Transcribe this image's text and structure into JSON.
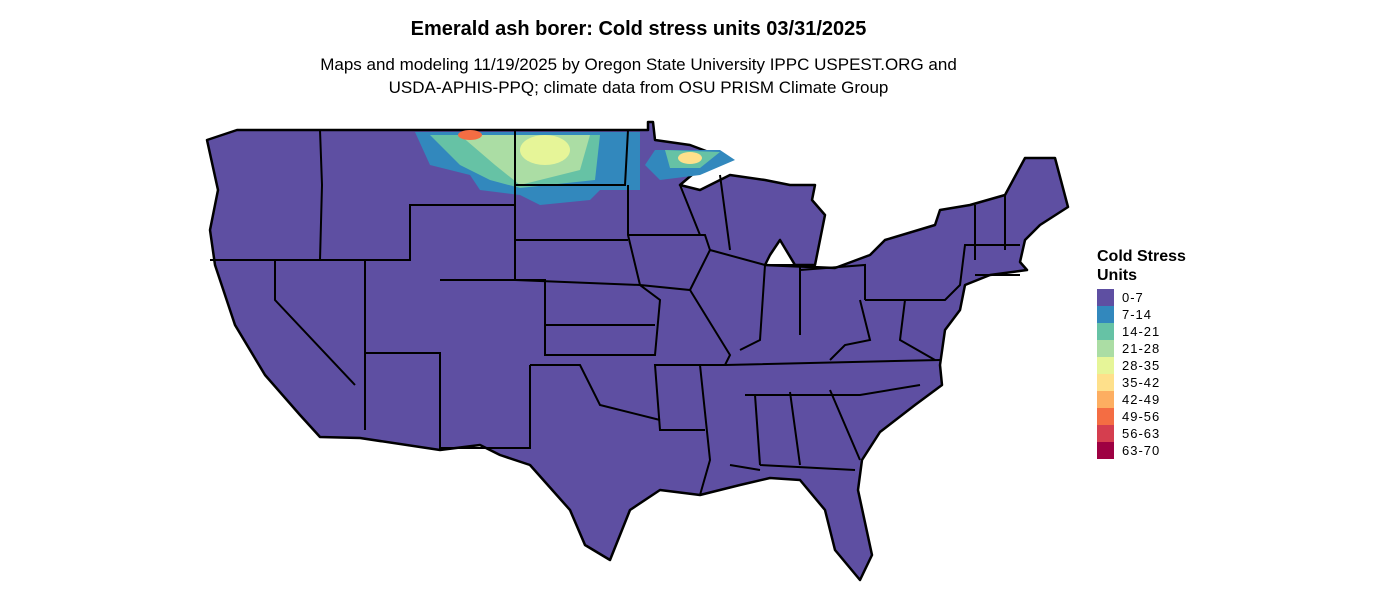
{
  "title": "Emerald ash borer: Cold stress units 03/31/2025",
  "subtitle_lines": [
    "Maps and modeling 11/19/2025 by Oregon State University IPPC USPEST.ORG and",
    "USDA-APHIS-PPQ; climate data from OSU PRISM Climate Group"
  ],
  "legend": {
    "title_lines": [
      "Cold Stress",
      "Units"
    ],
    "items": [
      {
        "label": "0-7",
        "color": "#5e4fa2"
      },
      {
        "label": "7-14",
        "color": "#3288bd"
      },
      {
        "label": "14-21",
        "color": "#66c2a5"
      },
      {
        "label": "21-28",
        "color": "#abdda4"
      },
      {
        "label": "28-35",
        "color": "#e6f598"
      },
      {
        "label": "35-42",
        "color": "#fee08b"
      },
      {
        "label": "42-49",
        "color": "#fdae61"
      },
      {
        "label": "49-56",
        "color": "#f46d43"
      },
      {
        "label": "56-63",
        "color": "#d53e4f"
      },
      {
        "label": "63-70",
        "color": "#9e0142"
      }
    ]
  }
}
